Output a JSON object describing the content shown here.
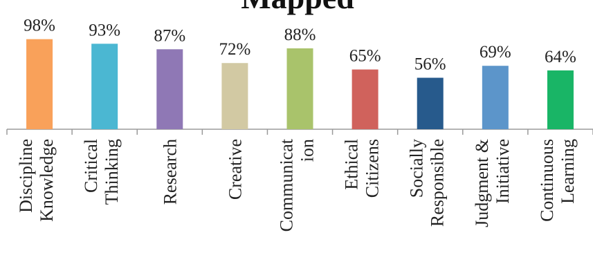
{
  "chart_data": {
    "type": "bar",
    "title": "Mapped",
    "categories": [
      [
        "Discipline",
        "Knowledge"
      ],
      [
        "Critical",
        "Thinking"
      ],
      [
        "Research"
      ],
      [
        "Creative"
      ],
      [
        "Communicat",
        "ion"
      ],
      [
        "Ethical",
        "Citizens"
      ],
      [
        "Socially",
        "Responsible"
      ],
      [
        "Judgment &",
        "Initiative"
      ],
      [
        "Continuous",
        "Learning"
      ]
    ],
    "values": [
      98,
      93,
      87,
      72,
      88,
      65,
      56,
      69,
      64
    ],
    "value_labels": [
      "98%",
      "93%",
      "87%",
      "72%",
      "88%",
      "65%",
      "56%",
      "69%",
      "64%"
    ],
    "colors": [
      "#F9A15A",
      "#4BB7D2",
      "#8F78B5",
      "#D2C9A3",
      "#A9C36B",
      "#D0625C",
      "#275A8C",
      "#5C95CA",
      "#19B566"
    ],
    "ylim": [
      0,
      100
    ],
    "xlabel": "",
    "ylabel": "",
    "grid": false,
    "legend": "none"
  }
}
